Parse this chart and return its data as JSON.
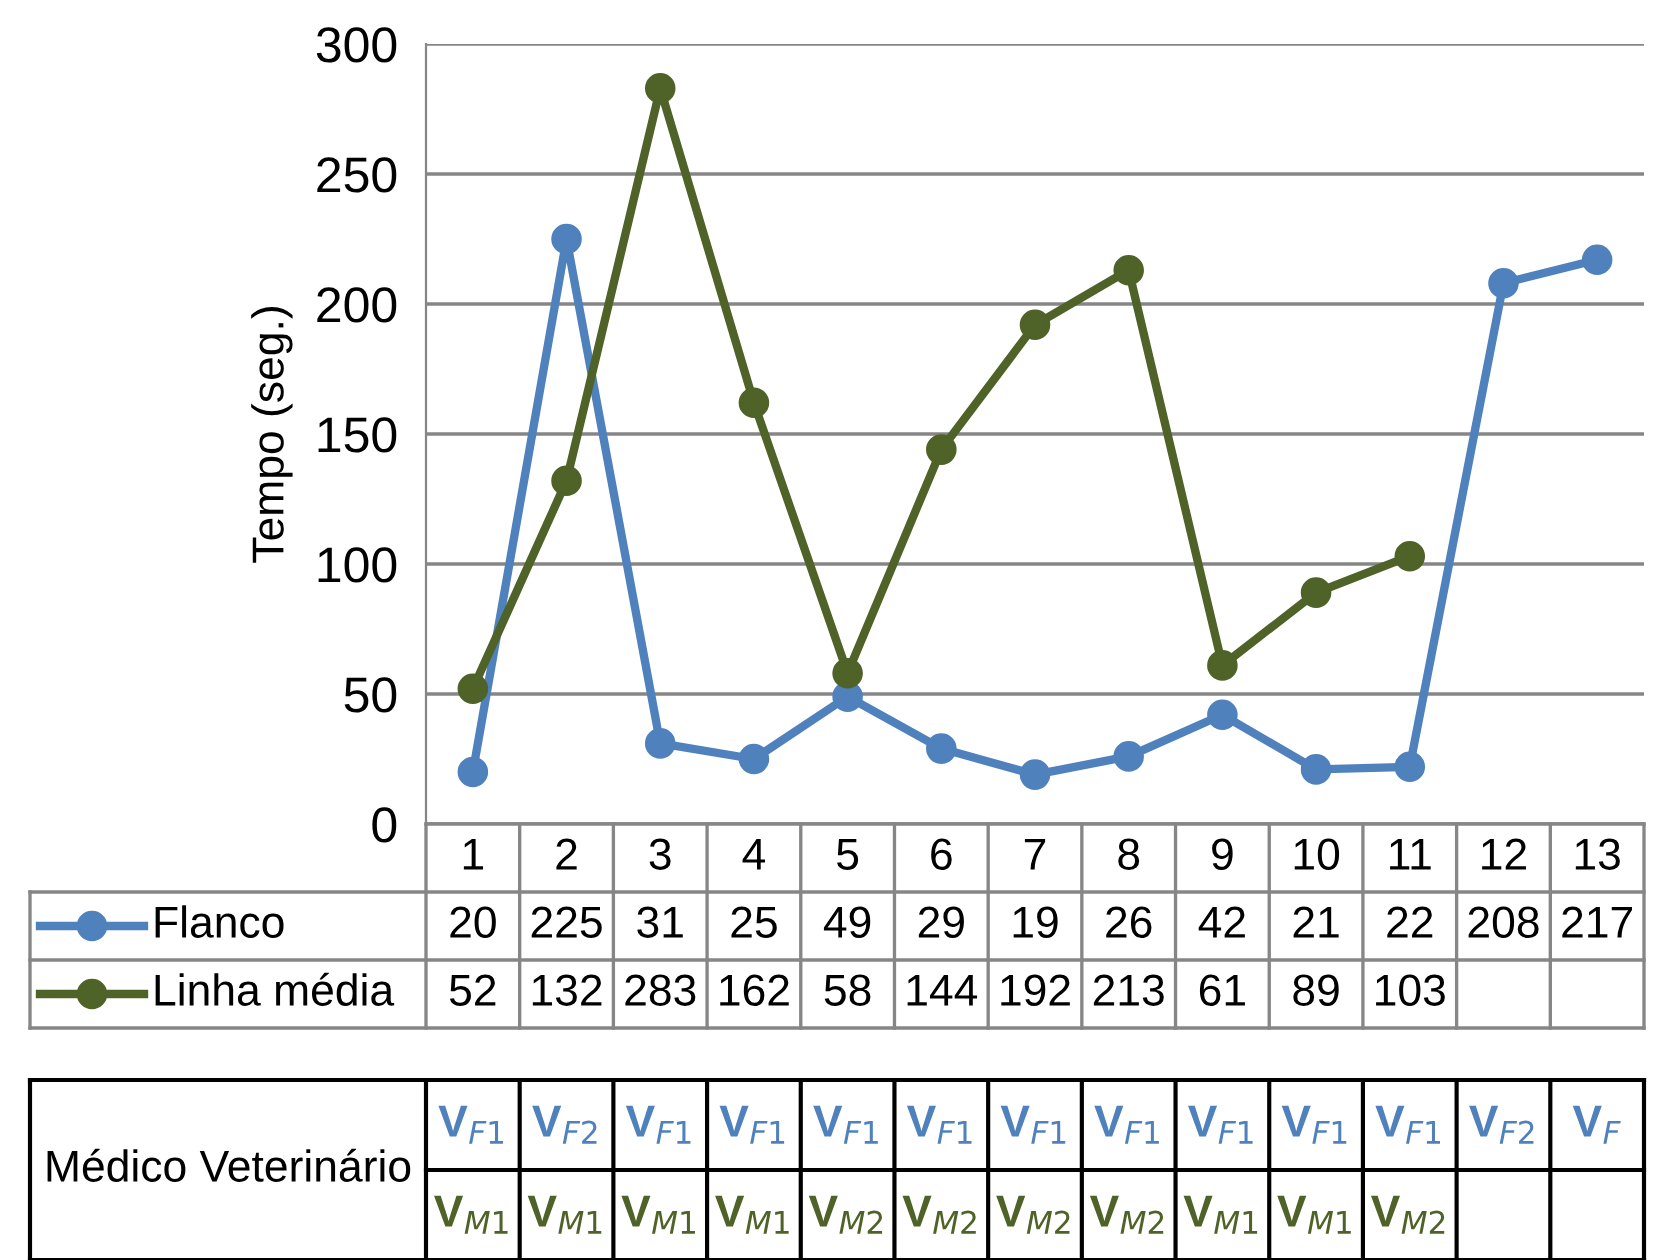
{
  "chart_data": {
    "type": "line",
    "ylabel": "Tempo (seg.)",
    "categories": [
      "1",
      "2",
      "3",
      "4",
      "5",
      "6",
      "7",
      "8",
      "9",
      "10",
      "11",
      "12",
      "13"
    ],
    "series": [
      {
        "name": "Flanco",
        "color": "#4f81bd",
        "values": [
          20,
          225,
          31,
          25,
          49,
          29,
          19,
          26,
          42,
          21,
          22,
          208,
          217
        ]
      },
      {
        "name": "Linha média",
        "color": "#4f6228",
        "values": [
          52,
          132,
          283,
          162,
          58,
          144,
          192,
          213,
          61,
          89,
          103,
          null,
          null
        ]
      }
    ],
    "ylim": [
      0,
      300
    ],
    "yticks": [
      0,
      50,
      100,
      150,
      200,
      250,
      300
    ],
    "grid": "y",
    "legend": "bottom",
    "marker": "circle",
    "line_style": "solid",
    "data_labels": true,
    "annotations": [
      "Médico Veterinário",
      "V$_{F1}$",
      "V$_{F2}$",
      "V$_{F1}$",
      "V$_{F1}$",
      "V$_{F1}$",
      "V$_{F1}$",
      "V$_{F1}$",
      "V$_{F1}$",
      "V$_{F1}$",
      "V$_{F1}$",
      "V$_{F1}$",
      "V$_{F2}$",
      "V$_{F}$",
      "V$_{M1}$",
      "V$_{M1}$",
      "V$_{M1}$",
      "V$_{M1}$",
      "V$_{M2}$",
      "V$_{M2}$",
      "V$_{M2}$",
      "V$_{M2}$",
      "V$_{M1}$",
      "V$_{M1}$",
      "V$_{M2}$"
    ]
  }
}
